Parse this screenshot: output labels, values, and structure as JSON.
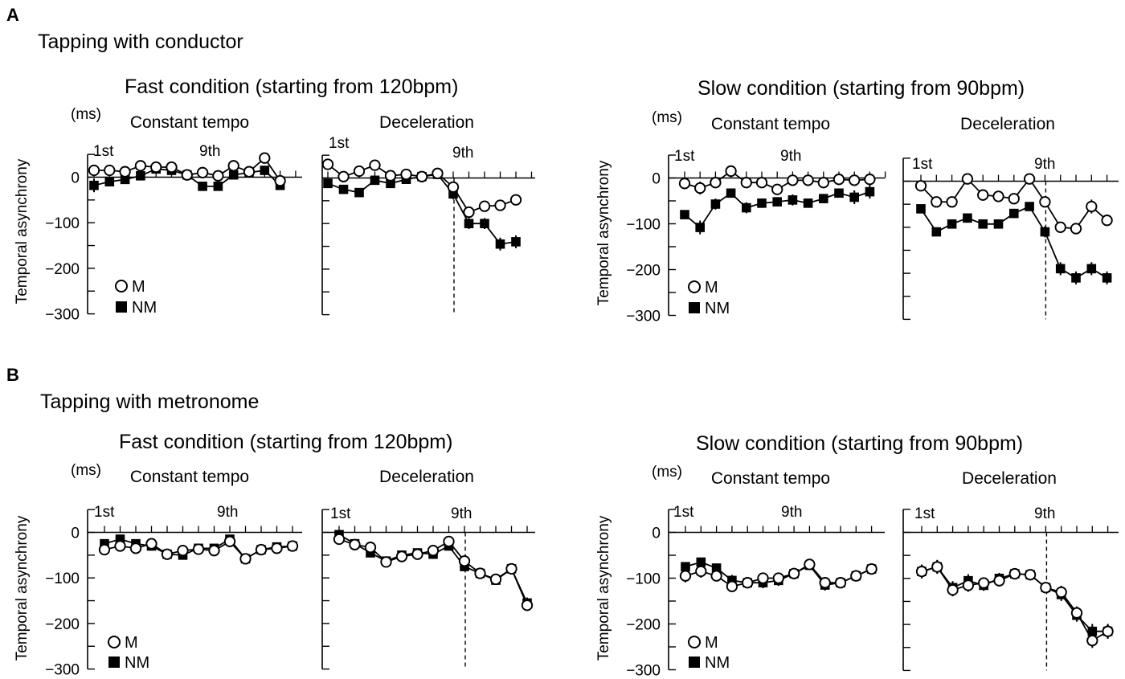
{
  "figure": {
    "blocks": [
      {
        "letter": "A",
        "title": "Tapping with conductor",
        "conditions": [
          {
            "title": "Fast condition (starting from 120bpm)"
          },
          {
            "title": "Slow condition (starting from 90bpm)"
          }
        ]
      },
      {
        "letter": "B",
        "title": "Tapping with metronome",
        "conditions": [
          {
            "title": "Fast condition (starting from 120bpm)"
          },
          {
            "title": "Slow condition (starting from 90bpm)"
          }
        ]
      }
    ],
    "unit": "(ms)",
    "ylabel": "Temporal asynchrony",
    "yticks": [
      "0",
      "−100",
      "−200",
      "−300"
    ],
    "subplot_titles": {
      "constant": "Constant tempo",
      "decel": "Deceleration"
    },
    "beat_labels": {
      "first": "1st",
      "ninth": "9th"
    },
    "legend": {
      "m": "M",
      "nm": "NM"
    }
  },
  "colors": {
    "line": "#000000",
    "open_marker": "#ffffff",
    "filled_marker": "#000000"
  },
  "chart_data": [
    {
      "id": "A-fast-constant",
      "type": "line",
      "title": "Constant tempo",
      "xlabel": "",
      "ylabel": "Temporal asynchrony",
      "ylim": [
        -300,
        50
      ],
      "n_beats": 15,
      "series": [
        {
          "name": "M",
          "values": [
            15,
            15,
            12,
            25,
            22,
            22,
            5,
            10,
            3,
            25,
            12,
            42,
            -8
          ],
          "err": [
            6,
            6,
            6,
            6,
            6,
            6,
            6,
            6,
            6,
            6,
            6,
            6,
            6
          ]
        },
        {
          "name": "NM",
          "values": [
            -18,
            -10,
            -5,
            3,
            18,
            15,
            5,
            -20,
            -20,
            5,
            10,
            15,
            -18
          ],
          "err": [
            15,
            10,
            10,
            8,
            8,
            8,
            6,
            8,
            8,
            8,
            8,
            10,
            8
          ]
        }
      ]
    },
    {
      "id": "A-fast-decel",
      "type": "line",
      "title": "Deceleration",
      "xlabel": "",
      "ylabel": "Temporal asynchrony",
      "ylim": [
        -300,
        50
      ],
      "n_beats": 15,
      "series": [
        {
          "name": "M",
          "values": [
            30,
            3,
            15,
            28,
            5,
            8,
            3,
            10,
            -20,
            -75,
            -62,
            -60,
            -48
          ],
          "err": [
            6,
            6,
            6,
            6,
            6,
            6,
            6,
            6,
            8,
            10,
            12,
            12,
            12
          ]
        },
        {
          "name": "NM",
          "values": [
            -12,
            -25,
            -32,
            -5,
            -12,
            -3,
            3,
            8,
            -35,
            -100,
            -100,
            -145,
            -140
          ],
          "err": [
            6,
            8,
            10,
            8,
            8,
            8,
            6,
            6,
            12,
            12,
            12,
            14,
            14
          ]
        }
      ]
    },
    {
      "id": "A-slow-constant",
      "type": "line",
      "title": "Constant tempo",
      "xlabel": "",
      "ylabel": "Temporal asynchrony",
      "ylim": [
        -300,
        50
      ],
      "n_beats": 15,
      "series": [
        {
          "name": "M",
          "values": [
            -12,
            -22,
            -10,
            15,
            -10,
            -10,
            -25,
            -5,
            -5,
            -10,
            -3,
            -5,
            -3
          ],
          "err": [
            12,
            14,
            10,
            10,
            8,
            8,
            10,
            8,
            8,
            8,
            8,
            8,
            6
          ]
        },
        {
          "name": "NM",
          "values": [
            -80,
            -108,
            -57,
            -33,
            -65,
            -55,
            -52,
            -48,
            -55,
            -45,
            -33,
            -42,
            -30
          ],
          "err": [
            8,
            15,
            12,
            10,
            12,
            10,
            10,
            12,
            10,
            10,
            10,
            15,
            15
          ]
        }
      ]
    },
    {
      "id": "A-slow-decel",
      "type": "line",
      "title": "Deceleration",
      "xlabel": "",
      "ylabel": "Temporal asynchrony",
      "ylim": [
        -300,
        50
      ],
      "n_beats": 15,
      "series": [
        {
          "name": "M",
          "values": [
            -10,
            -45,
            -45,
            5,
            -30,
            -33,
            -38,
            5,
            -45,
            -100,
            -103,
            -55,
            -85
          ],
          "err": [
            8,
            8,
            8,
            6,
            6,
            6,
            6,
            6,
            8,
            10,
            12,
            15,
            12
          ]
        },
        {
          "name": "NM",
          "values": [
            -60,
            -110,
            -93,
            -80,
            -93,
            -93,
            -70,
            -55,
            -110,
            -190,
            -210,
            -190,
            -210
          ],
          "err": [
            8,
            8,
            8,
            10,
            8,
            8,
            10,
            8,
            12,
            14,
            14,
            14,
            14
          ]
        }
      ]
    },
    {
      "id": "B-fast-constant",
      "type": "line",
      "title": "Constant tempo",
      "xlabel": "",
      "ylabel": "Temporal asynchrony",
      "ylim": [
        -300,
        50
      ],
      "n_beats": 13,
      "series": [
        {
          "name": "M",
          "values": [
            -38,
            -30,
            -35,
            -25,
            -48,
            -40,
            -37,
            -40,
            -20,
            -58,
            -38,
            -35,
            -30
          ],
          "err": [
            10,
            10,
            10,
            8,
            8,
            8,
            6,
            8,
            6,
            12,
            8,
            8,
            8
          ]
        },
        {
          "name": "NM",
          "values": [
            -25,
            -15,
            -25,
            -30,
            -48,
            -50,
            -35,
            -35,
            -15,
            -58,
            -38,
            -32,
            -30
          ],
          "err": [
            10,
            10,
            10,
            8,
            8,
            8,
            6,
            8,
            6,
            10,
            8,
            8,
            8
          ]
        }
      ]
    },
    {
      "id": "B-fast-decel",
      "type": "line",
      "title": "Deceleration",
      "xlabel": "",
      "ylabel": "Temporal asynchrony",
      "ylim": [
        -300,
        50
      ],
      "n_beats": 15,
      "series": [
        {
          "name": "M",
          "values": [
            -15,
            -27,
            -33,
            -65,
            -53,
            -48,
            -40,
            -20,
            -63,
            -90,
            -103,
            -80,
            -160
          ],
          "err": [
            8,
            8,
            8,
            10,
            10,
            10,
            10,
            10,
            10,
            10,
            10,
            10,
            12
          ]
        },
        {
          "name": "NM",
          "values": [
            -5,
            -25,
            -45,
            -63,
            -50,
            -45,
            -48,
            -30,
            -75,
            -90,
            -105,
            -80,
            -155
          ],
          "err": [
            8,
            8,
            8,
            10,
            10,
            10,
            10,
            10,
            10,
            10,
            10,
            10,
            12
          ]
        }
      ]
    },
    {
      "id": "B-slow-constant",
      "type": "line",
      "title": "Constant tempo",
      "xlabel": "",
      "ylabel": "Temporal asynchrony",
      "ylim": [
        -300,
        50
      ],
      "n_beats": 15,
      "series": [
        {
          "name": "M",
          "values": [
            -95,
            -85,
            -95,
            -118,
            -110,
            -100,
            -100,
            -90,
            -70,
            -110,
            -110,
            -95,
            -80
          ],
          "err": [
            14,
            14,
            10,
            12,
            12,
            12,
            12,
            10,
            10,
            12,
            12,
            12,
            10
          ]
        },
        {
          "name": "NM",
          "values": [
            -75,
            -65,
            -78,
            -105,
            -110,
            -110,
            -105,
            -90,
            -72,
            -115,
            -110,
            -95,
            -80
          ],
          "err": [
            10,
            10,
            10,
            12,
            12,
            12,
            12,
            10,
            10,
            12,
            12,
            12,
            10
          ]
        }
      ]
    },
    {
      "id": "B-slow-decel",
      "type": "line",
      "title": "Deceleration",
      "xlabel": "",
      "ylabel": "Temporal asynchrony",
      "ylim": [
        -300,
        50
      ],
      "n_beats": 15,
      "series": [
        {
          "name": "M",
          "values": [
            -85,
            -75,
            -125,
            -115,
            -110,
            -105,
            -90,
            -92,
            -120,
            -130,
            -175,
            -235,
            -215
          ],
          "err": [
            15,
            15,
            14,
            14,
            12,
            12,
            10,
            10,
            10,
            14,
            14,
            16,
            16
          ]
        },
        {
          "name": "NM",
          "values": [
            -85,
            -75,
            -120,
            -105,
            -115,
            -100,
            -90,
            -92,
            -120,
            -135,
            -180,
            -215,
            -215
          ],
          "err": [
            15,
            15,
            14,
            14,
            12,
            12,
            10,
            10,
            10,
            14,
            14,
            16,
            16
          ]
        }
      ]
    }
  ]
}
